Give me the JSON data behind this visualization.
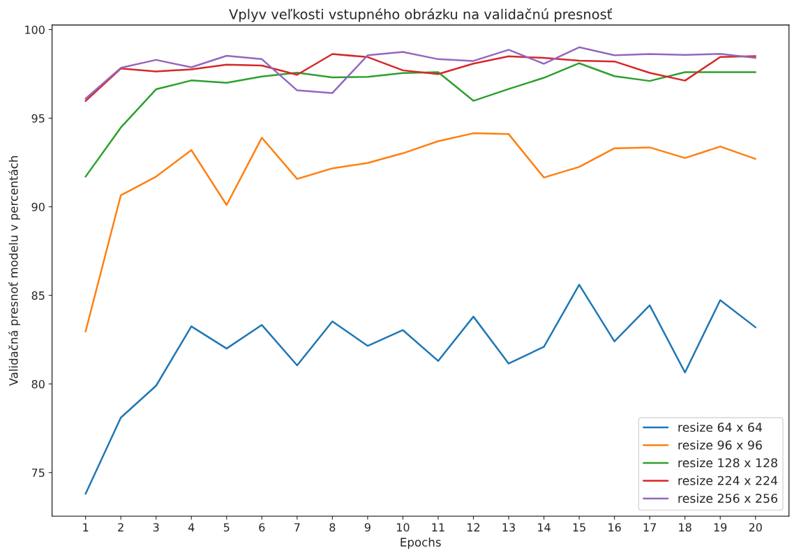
{
  "chart_data": {
    "type": "line",
    "title": "Vplyv veľkosti vstupného obrázku na validačnú presnosť",
    "xlabel": "Epochs",
    "ylabel": "Validačná presnoť modelu v percentách",
    "x": [
      1,
      2,
      3,
      4,
      5,
      6,
      7,
      8,
      9,
      10,
      11,
      12,
      13,
      14,
      15,
      16,
      17,
      18,
      19,
      20
    ],
    "xlim": [
      0.05,
      20.95
    ],
    "xticks": [
      1,
      2,
      3,
      4,
      5,
      6,
      7,
      8,
      9,
      10,
      11,
      12,
      13,
      14,
      15,
      16,
      17,
      18,
      19,
      20
    ],
    "ylim": [
      72.54,
      100.26
    ],
    "yticks": [
      75,
      80,
      85,
      90,
      95,
      100
    ],
    "legend": "bottom right",
    "grid": false,
    "marker": "none",
    "line_style": "solid",
    "series": [
      {
        "name": "resize 64 x 64",
        "color": "#1f77b4",
        "values": [
          73.8,
          78.1,
          79.9,
          83.25,
          82.0,
          83.33,
          81.05,
          83.53,
          82.15,
          83.04,
          81.3,
          83.8,
          81.15,
          82.1,
          85.6,
          82.4,
          84.44,
          80.65,
          84.73,
          83.2
        ]
      },
      {
        "name": "resize 96 x 96",
        "color": "#ff7f0e",
        "values": [
          82.96,
          90.65,
          91.7,
          93.2,
          90.1,
          93.9,
          91.57,
          92.17,
          92.47,
          93.02,
          93.7,
          94.15,
          94.1,
          91.65,
          92.25,
          93.3,
          93.35,
          92.75,
          93.4,
          92.7
        ]
      },
      {
        "name": "resize 128 x 128",
        "color": "#2ca02c",
        "values": [
          91.7,
          94.47,
          96.63,
          97.13,
          97.0,
          97.35,
          97.57,
          97.3,
          97.33,
          97.55,
          97.6,
          95.98,
          96.65,
          97.28,
          98.1,
          97.37,
          97.1,
          97.6,
          97.6,
          97.6
        ]
      },
      {
        "name": "resize 224 x 224",
        "color": "#d62728",
        "values": [
          95.97,
          97.8,
          97.64,
          97.75,
          98.02,
          97.97,
          97.45,
          98.62,
          98.45,
          97.7,
          97.49,
          98.08,
          98.49,
          98.4,
          98.25,
          98.2,
          97.56,
          97.12,
          98.45,
          98.5
        ]
      },
      {
        "name": "resize 256 x 256",
        "color": "#9467bd",
        "values": [
          96.1,
          97.84,
          98.29,
          97.87,
          98.52,
          98.33,
          96.57,
          96.42,
          98.55,
          98.74,
          98.33,
          98.23,
          98.86,
          98.07,
          99.0,
          98.55,
          98.62,
          98.57,
          98.63,
          98.4
        ]
      }
    ]
  }
}
